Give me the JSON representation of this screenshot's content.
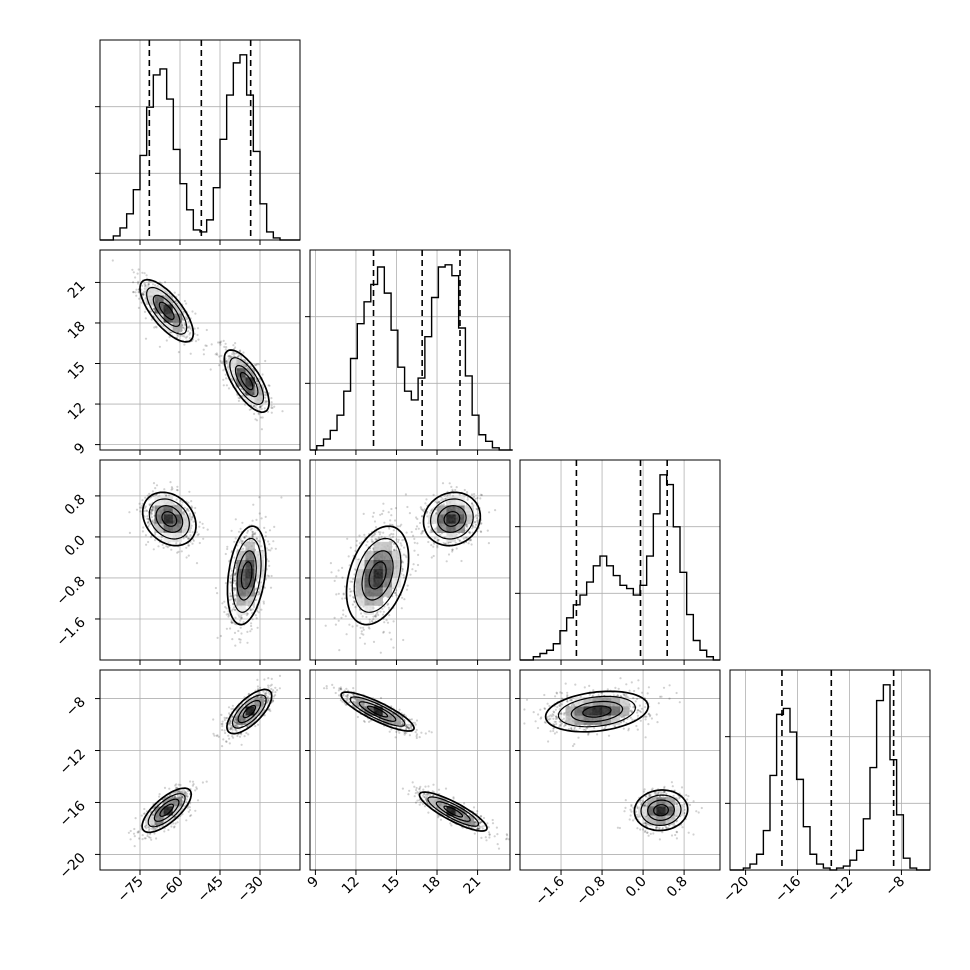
{
  "chart_data": {
    "type": "corner",
    "n_params": 4,
    "title": "",
    "grid": true,
    "axes": [
      {
        "ticks": [
          -75,
          -60,
          -45,
          -30
        ],
        "tick_labels": [
          "−75",
          "−60",
          "−45",
          "−30"
        ],
        "range": [
          -90,
          -15
        ]
      },
      {
        "ticks": [
          9,
          12,
          15,
          18,
          21
        ],
        "tick_labels": [
          "9",
          "12",
          "15",
          "18",
          "21"
        ],
        "range": [
          8.6,
          23.4
        ]
      },
      {
        "ticks": [
          -1.6,
          -0.8,
          0.0,
          0.8
        ],
        "tick_labels": [
          "−1.6",
          "−0.8",
          "0.0",
          "0.8"
        ],
        "range": [
          -2.4,
          1.5
        ]
      },
      {
        "ticks": [
          -20,
          -16,
          -12,
          -8
        ],
        "tick_labels": [
          "−20",
          "−16",
          "−12",
          "−8"
        ],
        "range": [
          -21.2,
          -5.8
        ]
      }
    ],
    "histograms": [
      {
        "param": 0,
        "edges": [
          -90,
          -87.5,
          -85,
          -82.5,
          -80,
          -77.5,
          -75,
          -72.5,
          -70,
          -67.5,
          -65,
          -62.5,
          -60,
          -57.5,
          -55,
          -52.5,
          -50,
          -47.5,
          -45,
          -42.5,
          -40,
          -37.5,
          -35,
          -32.5,
          -30,
          -27.5,
          -25,
          -22.5,
          -20,
          -17.5,
          -15
        ],
        "counts": [
          0,
          0,
          2,
          6,
          13,
          25,
          42,
          66,
          82,
          85,
          70,
          45,
          28,
          15,
          5,
          4,
          10,
          26,
          50,
          72,
          88,
          92,
          72,
          44,
          18,
          4,
          1,
          0,
          0,
          0
        ],
        "quantiles": [
          -71.5,
          -52.0,
          -33.5
        ]
      },
      {
        "param": 1,
        "edges": [
          8.6,
          9.1,
          9.6,
          10.1,
          10.6,
          11.1,
          11.6,
          12.1,
          12.6,
          13.1,
          13.6,
          14.1,
          14.6,
          15.1,
          15.6,
          16.1,
          16.6,
          17.1,
          17.6,
          18.1,
          18.6,
          19.1,
          19.6,
          20.1,
          20.6,
          21.1,
          21.6,
          22.1,
          22.6,
          23.1,
          23.6
        ],
        "counts": [
          0,
          2,
          5,
          9,
          16,
          27,
          42,
          58,
          68,
          76,
          84,
          72,
          55,
          38,
          27,
          23,
          33,
          52,
          70,
          84,
          85,
          80,
          56,
          34,
          16,
          7,
          4,
          1,
          0,
          0
        ],
        "quantiles": [
          13.3,
          16.9,
          19.7
        ]
      },
      {
        "param": 2,
        "edges": [
          -2.4,
          -2.27,
          -2.14,
          -2.01,
          -1.88,
          -1.75,
          -1.62,
          -1.49,
          -1.36,
          -1.23,
          -1.1,
          -0.97,
          -0.84,
          -0.71,
          -0.58,
          -0.45,
          -0.32,
          -0.19,
          -0.06,
          0.07,
          0.2,
          0.33,
          0.46,
          0.59,
          0.72,
          0.85,
          0.98,
          1.11,
          1.24,
          1.37,
          1.5
        ],
        "counts": [
          0,
          0,
          2,
          4,
          6,
          10,
          18,
          26,
          34,
          40,
          48,
          58,
          64,
          58,
          52,
          46,
          44,
          40,
          46,
          64,
          90,
          114,
          108,
          82,
          54,
          28,
          12,
          6,
          2,
          0
        ],
        "quantiles": [
          -1.3,
          -0.05,
          0.47
        ]
      },
      {
        "param": 3,
        "edges": [
          -21.2,
          -20.69,
          -20.17,
          -19.66,
          -19.15,
          -18.63,
          -18.12,
          -17.61,
          -17.09,
          -16.58,
          -16.07,
          -15.55,
          -15.04,
          -14.53,
          -14.01,
          -13.5,
          -12.99,
          -12.47,
          -11.96,
          -11.45,
          -10.93,
          -10.42,
          -9.91,
          -9.39,
          -8.88,
          -8.37,
          -7.85,
          -7.34,
          -6.83,
          -6.31,
          -5.8
        ],
        "counts": [
          0,
          0,
          1,
          3,
          8,
          20,
          48,
          79,
          82,
          70,
          46,
          22,
          8,
          3,
          1,
          0,
          1,
          2,
          5,
          10,
          26,
          52,
          86,
          94,
          56,
          28,
          6,
          1,
          0,
          0
        ],
        "quantiles": [
          -17.2,
          -13.4,
          -8.6
        ]
      }
    ],
    "scatter_panels": [
      {
        "x_param": 0,
        "y_param": 1,
        "modes": [
          {
            "center": [
              -65.0,
              18.9
            ],
            "sd": [
              5.0,
              1.15
            ],
            "rho": -0.72,
            "weight": 0.5
          },
          {
            "center": [
              -35.0,
              13.7
            ],
            "sd": [
              4.2,
              1.15
            ],
            "rho": -0.7,
            "weight": 0.5
          }
        ]
      },
      {
        "x_param": 0,
        "y_param": 2,
        "modes": [
          {
            "center": [
              -64.0,
              0.35
            ],
            "sd": [
              5.0,
              0.26
            ],
            "rho": -0.25,
            "weight": 0.45
          },
          {
            "center": [
              -35.0,
              -0.75
            ],
            "sd": [
              3.6,
              0.48
            ],
            "rho": 0.3,
            "weight": 0.55
          }
        ]
      },
      {
        "x_param": 1,
        "y_param": 2,
        "modes": [
          {
            "center": [
              13.6,
              -0.75
            ],
            "sd": [
              1.15,
              0.48
            ],
            "rho": 0.35,
            "weight": 0.55
          },
          {
            "center": [
              19.1,
              0.35
            ],
            "sd": [
              1.05,
              0.26
            ],
            "rho": 0.1,
            "weight": 0.45
          }
        ]
      },
      {
        "x_param": 0,
        "y_param": 3,
        "modes": [
          {
            "center": [
              -65.0,
              -16.6
            ],
            "sd": [
              4.6,
              0.85
            ],
            "rho": 0.72,
            "weight": 0.5
          },
          {
            "center": [
              -34.0,
              -9.0
            ],
            "sd": [
              4.2,
              0.85
            ],
            "rho": 0.7,
            "weight": 0.5
          }
        ]
      },
      {
        "x_param": 1,
        "y_param": 3,
        "modes": [
          {
            "center": [
              13.6,
              -9.0
            ],
            "sd": [
              1.35,
              0.75
            ],
            "rho": -0.85,
            "weight": 0.5
          },
          {
            "center": [
              19.2,
              -16.7
            ],
            "sd": [
              1.25,
              0.75
            ],
            "rho": -0.85,
            "weight": 0.5
          }
        ]
      },
      {
        "x_param": 2,
        "y_param": 3,
        "modes": [
          {
            "center": [
              -0.9,
              -9.0
            ],
            "sd": [
              0.5,
              0.78
            ],
            "rho": 0.25,
            "weight": 0.55
          },
          {
            "center": [
              0.35,
              -16.6
            ],
            "sd": [
              0.26,
              0.78
            ],
            "rho": 0.05,
            "weight": 0.45
          }
        ]
      }
    ]
  }
}
